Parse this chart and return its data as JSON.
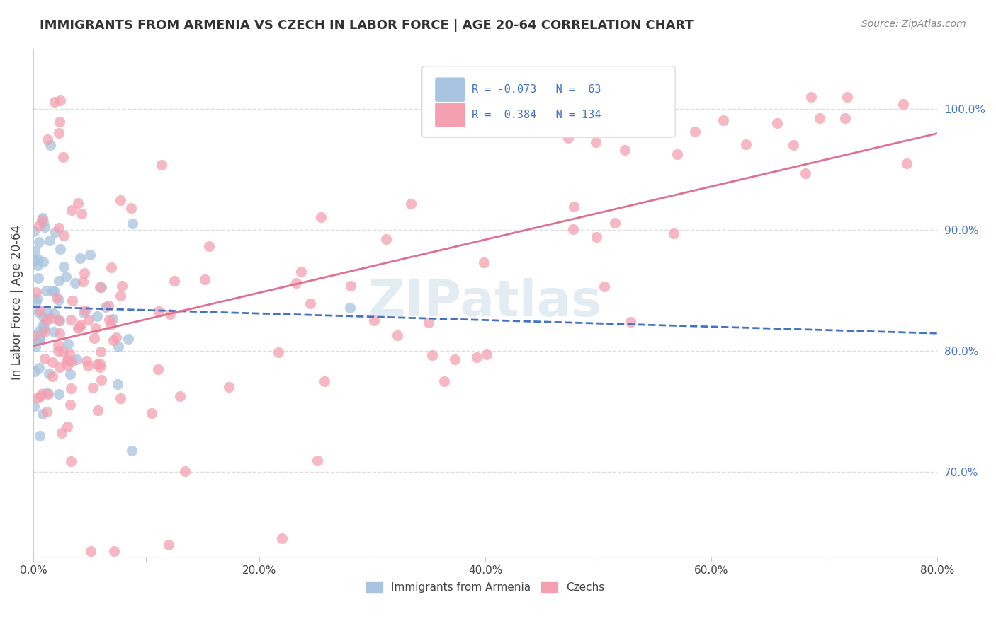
{
  "title": "IMMIGRANTS FROM ARMENIA VS CZECH IN LABOR FORCE | AGE 20-64 CORRELATION CHART",
  "source": "Source: ZipAtlas.com",
  "ylabel": "In Labor Force | Age 20-64",
  "xlim": [
    0.0,
    0.8
  ],
  "ylim": [
    0.63,
    1.05
  ],
  "xticks": [
    0.0,
    0.1,
    0.2,
    0.3,
    0.4,
    0.5,
    0.6,
    0.7,
    0.8
  ],
  "xticklabels": [
    "0.0%",
    "",
    "20.0%",
    "",
    "40.0%",
    "",
    "60.0%",
    "",
    "80.0%"
  ],
  "yticks_right": [
    0.7,
    0.8,
    0.9,
    1.0
  ],
  "yticklabels_right": [
    "70.0%",
    "80.0%",
    "90.0%",
    "100.0%"
  ],
  "legend_label1": "Immigrants from Armenia",
  "legend_label2": "Czechs",
  "armenia_color": "#a8c4e0",
  "czech_color": "#f4a0b0",
  "armenia_trend_color": "#4472c4",
  "czech_trend_color": "#e07090",
  "watermark": "ZIPatlas",
  "background_color": "#ffffff",
  "grid_color": "#dddddd",
  "R_armenia": -0.073,
  "N_armenia": 63,
  "R_czech": 0.384,
  "N_czech": 134,
  "armenia_seed": 42,
  "czech_seed": 123
}
